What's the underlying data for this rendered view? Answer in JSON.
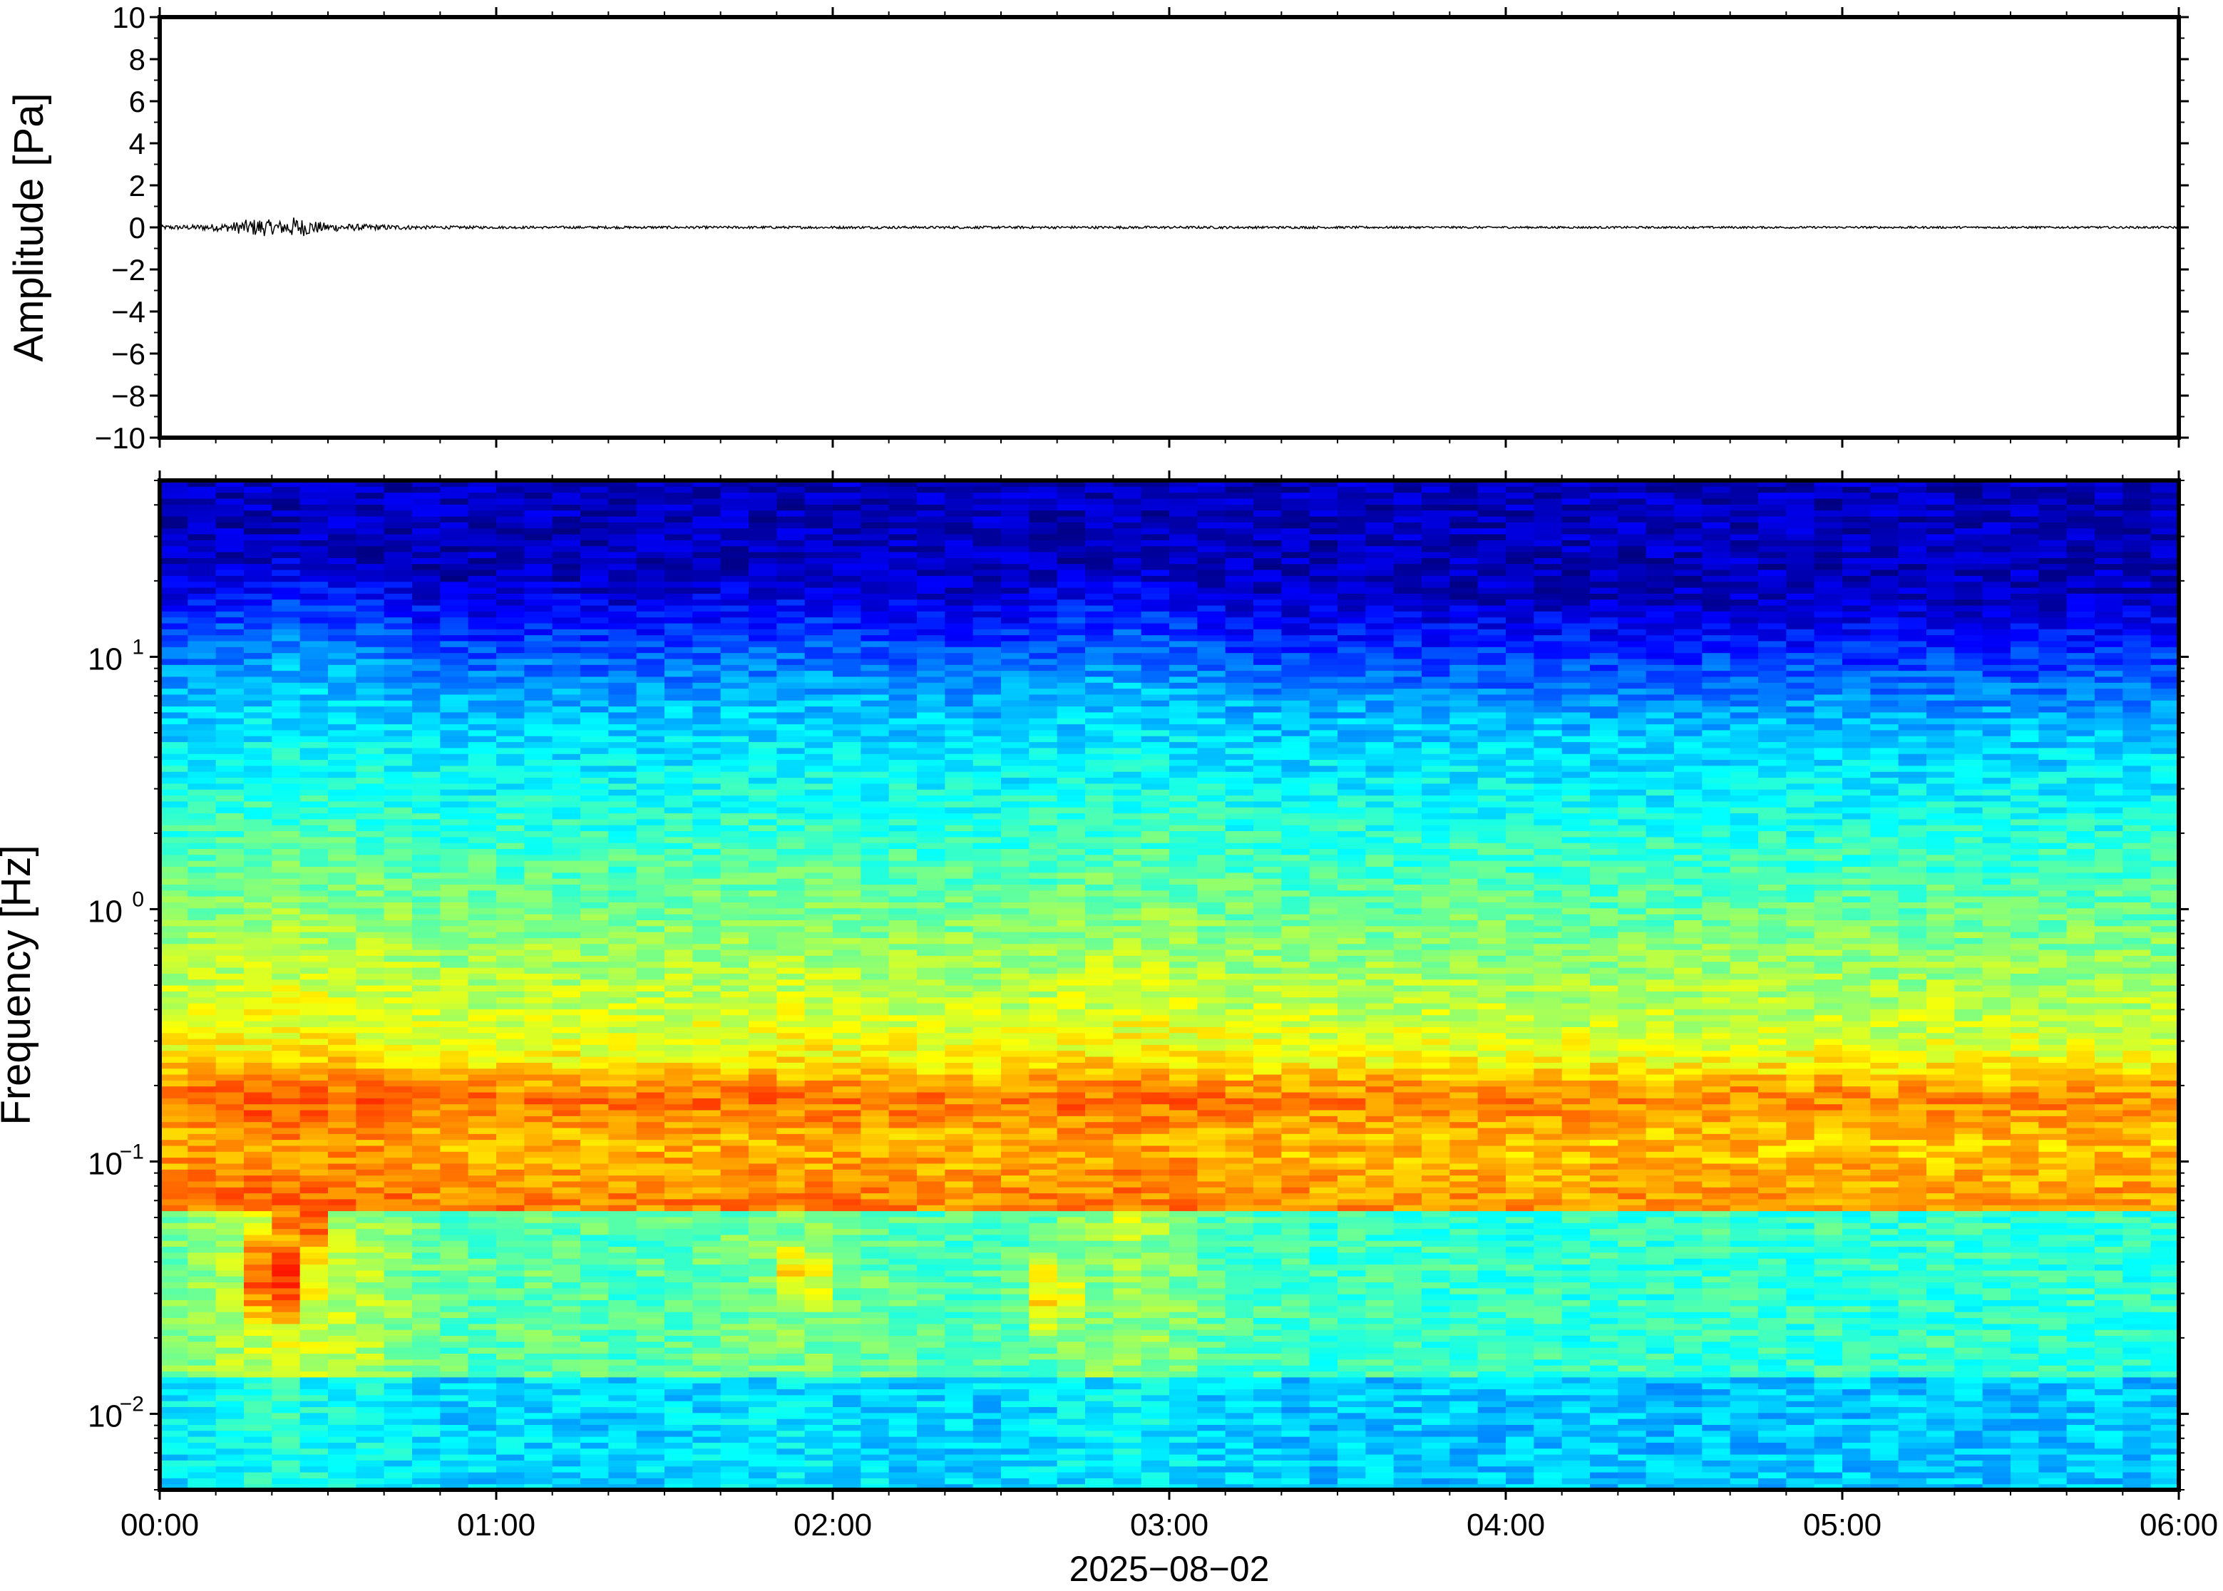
{
  "chart_data": [
    {
      "type": "line",
      "panel": "waveform",
      "ylabel": "Amplitude [Pa]",
      "xlabel": "",
      "ylim": [
        -10,
        10
      ],
      "yticks": [
        10,
        8,
        6,
        4,
        2,
        0,
        -2,
        -4,
        -6,
        -8,
        -10
      ],
      "ytick_labels": [
        "10",
        "8",
        "6",
        "4",
        "2",
        "0",
        "−2",
        "−4",
        "−6",
        "−8",
        "−10"
      ],
      "xlim_hours": [
        0,
        6
      ],
      "series": [
        {
          "color": "#000000",
          "x_hours": [
            0.0,
            0.1,
            0.2,
            0.25,
            0.3,
            0.35,
            0.4,
            0.45,
            0.5,
            0.6,
            0.8,
            1.0,
            2.0,
            3.0,
            4.0,
            5.0,
            6.0
          ],
          "envelope": [
            0.1,
            0.12,
            0.2,
            0.35,
            0.45,
            0.3,
            0.5,
            0.35,
            0.2,
            0.15,
            0.08,
            0.06,
            0.06,
            0.06,
            0.05,
            0.05,
            0.05
          ]
        }
      ],
      "grid": false
    },
    {
      "type": "heatmap",
      "panel": "spectrogram",
      "ylabel": "Frequency [Hz]",
      "xlabel": "2025−08−02",
      "y_scale": "log",
      "ylim": [
        0.005,
        50
      ],
      "yticks": [
        0.01,
        0.1,
        1,
        10
      ],
      "ytick_labels": [
        {
          "base": "10",
          "exp": "−2"
        },
        {
          "base": "10",
          "exp": "−1"
        },
        {
          "base": "10",
          "exp": "0"
        },
        {
          "base": "10",
          "exp": "1"
        }
      ],
      "xticks_hours": [
        0,
        1,
        2,
        3,
        4,
        5,
        6
      ],
      "xtick_labels": [
        "00:00",
        "01:00",
        "02:00",
        "03:00",
        "04:00",
        "05:00",
        "06:00"
      ],
      "colormap": "jet",
      "columns": 72,
      "column_energy": [
        1.0,
        1.1,
        1.3,
        1.5,
        1.7,
        1.5,
        1.4,
        1.3,
        1.1,
        0.9,
        0.8,
        0.75,
        0.8,
        0.85,
        0.8,
        0.75,
        0.7,
        0.75,
        0.8,
        0.85,
        0.9,
        0.95,
        1.0,
        0.95,
        0.9,
        0.85,
        0.8,
        0.75,
        0.7,
        0.7,
        0.75,
        0.85,
        1.0,
        1.1,
        1.15,
        1.1,
        1.0,
        0.8,
        0.7,
        0.65,
        0.6,
        0.55,
        0.6,
        0.6,
        0.55,
        0.55,
        0.6,
        0.55,
        0.5,
        0.55,
        0.5,
        0.5,
        0.55,
        0.5,
        0.5,
        0.55,
        0.5,
        0.5,
        0.5,
        0.55,
        0.5,
        0.5,
        0.5,
        0.55,
        0.5,
        0.5,
        0.5,
        0.5,
        0.55,
        0.5,
        0.5,
        0.5
      ],
      "lowfreq_hotspots": [
        {
          "t_hours": 0.35,
          "f_hz": 0.035,
          "level": 0.85
        },
        {
          "t_hours": 0.42,
          "f_hz": 0.06,
          "level": 0.8
        },
        {
          "t_hours": 1.9,
          "f_hz": 0.035,
          "level": 0.65
        },
        {
          "t_hours": 2.65,
          "f_hz": 0.03,
          "level": 0.65
        },
        {
          "t_hours": 2.9,
          "f_hz": 0.06,
          "level": 0.6
        }
      ],
      "microseism_band_hz": 0.18
    }
  ]
}
